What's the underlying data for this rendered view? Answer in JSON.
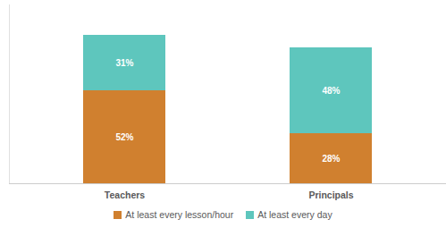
{
  "chart_data": {
    "type": "bar",
    "stacked": true,
    "data_labels": true,
    "tick_labels": "x",
    "categories": [
      "Teachers",
      "Principals"
    ],
    "ylim": [
      0,
      100
    ],
    "legend": "bottom",
    "series": [
      {
        "name": "At least every lesson/hour",
        "color": "#d0802f",
        "values": [
          52,
          28
        ],
        "value_labels": [
          "52%",
          "28%"
        ]
      },
      {
        "name": "At least every day",
        "color": "#5ec6bd",
        "values": [
          31,
          48
        ],
        "value_labels": [
          "31%",
          "48%"
        ]
      }
    ]
  }
}
